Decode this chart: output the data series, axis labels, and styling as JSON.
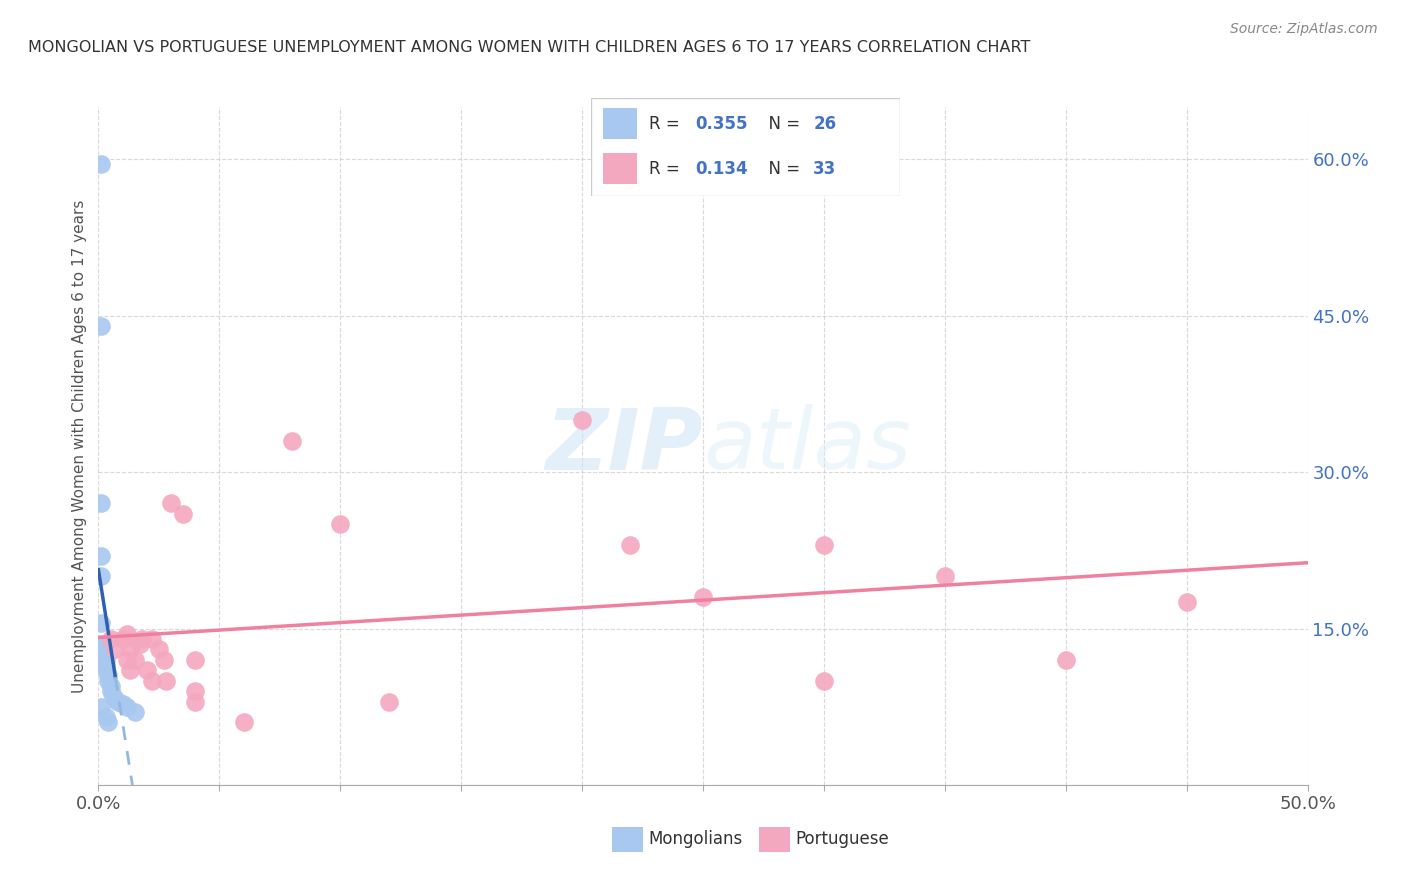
{
  "title": "MONGOLIAN VS PORTUGUESE UNEMPLOYMENT AMONG WOMEN WITH CHILDREN AGES 6 TO 17 YEARS CORRELATION CHART",
  "source": "Source: ZipAtlas.com",
  "ylabel": "Unemployment Among Women with Children Ages 6 to 17 years",
  "legend_mongolians": "Mongolians",
  "legend_portuguese": "Portuguese",
  "R_mongolian": 0.355,
  "N_mongolian": 26,
  "R_portuguese": 0.134,
  "N_portuguese": 33,
  "x_min": 0.0,
  "x_max": 0.5,
  "y_min": 0.0,
  "y_max": 0.65,
  "color_mongolian": "#a8c8f0",
  "color_portuguese": "#f4a8c0",
  "color_mongolian_line": "#3060b0",
  "color_mongolian_line_dashed": "#90b8e0",
  "color_portuguese_line": "#f080a0",
  "mongolian_x": [
    0.001,
    0.001,
    0.001,
    0.001,
    0.001,
    0.001,
    0.001,
    0.002,
    0.002,
    0.002,
    0.003,
    0.003,
    0.003,
    0.004,
    0.004,
    0.005,
    0.005,
    0.006,
    0.007,
    0.008,
    0.01,
    0.012,
    0.015,
    0.001,
    0.003,
    0.004
  ],
  "mongolian_y": [
    0.595,
    0.44,
    0.27,
    0.22,
    0.2,
    0.155,
    0.135,
    0.135,
    0.13,
    0.125,
    0.12,
    0.115,
    0.11,
    0.105,
    0.1,
    0.095,
    0.09,
    0.085,
    0.082,
    0.08,
    0.078,
    0.075,
    0.07,
    0.075,
    0.065,
    0.06
  ],
  "portuguese_x": [
    0.005,
    0.007,
    0.01,
    0.012,
    0.013,
    0.013,
    0.015,
    0.017,
    0.018,
    0.02,
    0.022,
    0.022,
    0.025,
    0.027,
    0.028,
    0.03,
    0.035,
    0.04,
    0.04,
    0.04,
    0.06,
    0.08,
    0.1,
    0.12,
    0.2,
    0.22,
    0.25,
    0.3,
    0.3,
    0.35,
    0.4,
    0.45,
    0.012
  ],
  "portuguese_y": [
    0.14,
    0.13,
    0.14,
    0.12,
    0.13,
    0.11,
    0.12,
    0.135,
    0.14,
    0.11,
    0.1,
    0.14,
    0.13,
    0.12,
    0.1,
    0.27,
    0.26,
    0.12,
    0.09,
    0.08,
    0.06,
    0.33,
    0.25,
    0.08,
    0.35,
    0.23,
    0.18,
    0.23,
    0.1,
    0.2,
    0.12,
    0.175,
    0.145
  ],
  "background_color": "#ffffff",
  "watermark_zip": "ZIP",
  "watermark_atlas": "atlas",
  "grid_color": "#d0d0d0",
  "tick_label_color": "#4472c4",
  "axis_label_color": "#555555"
}
